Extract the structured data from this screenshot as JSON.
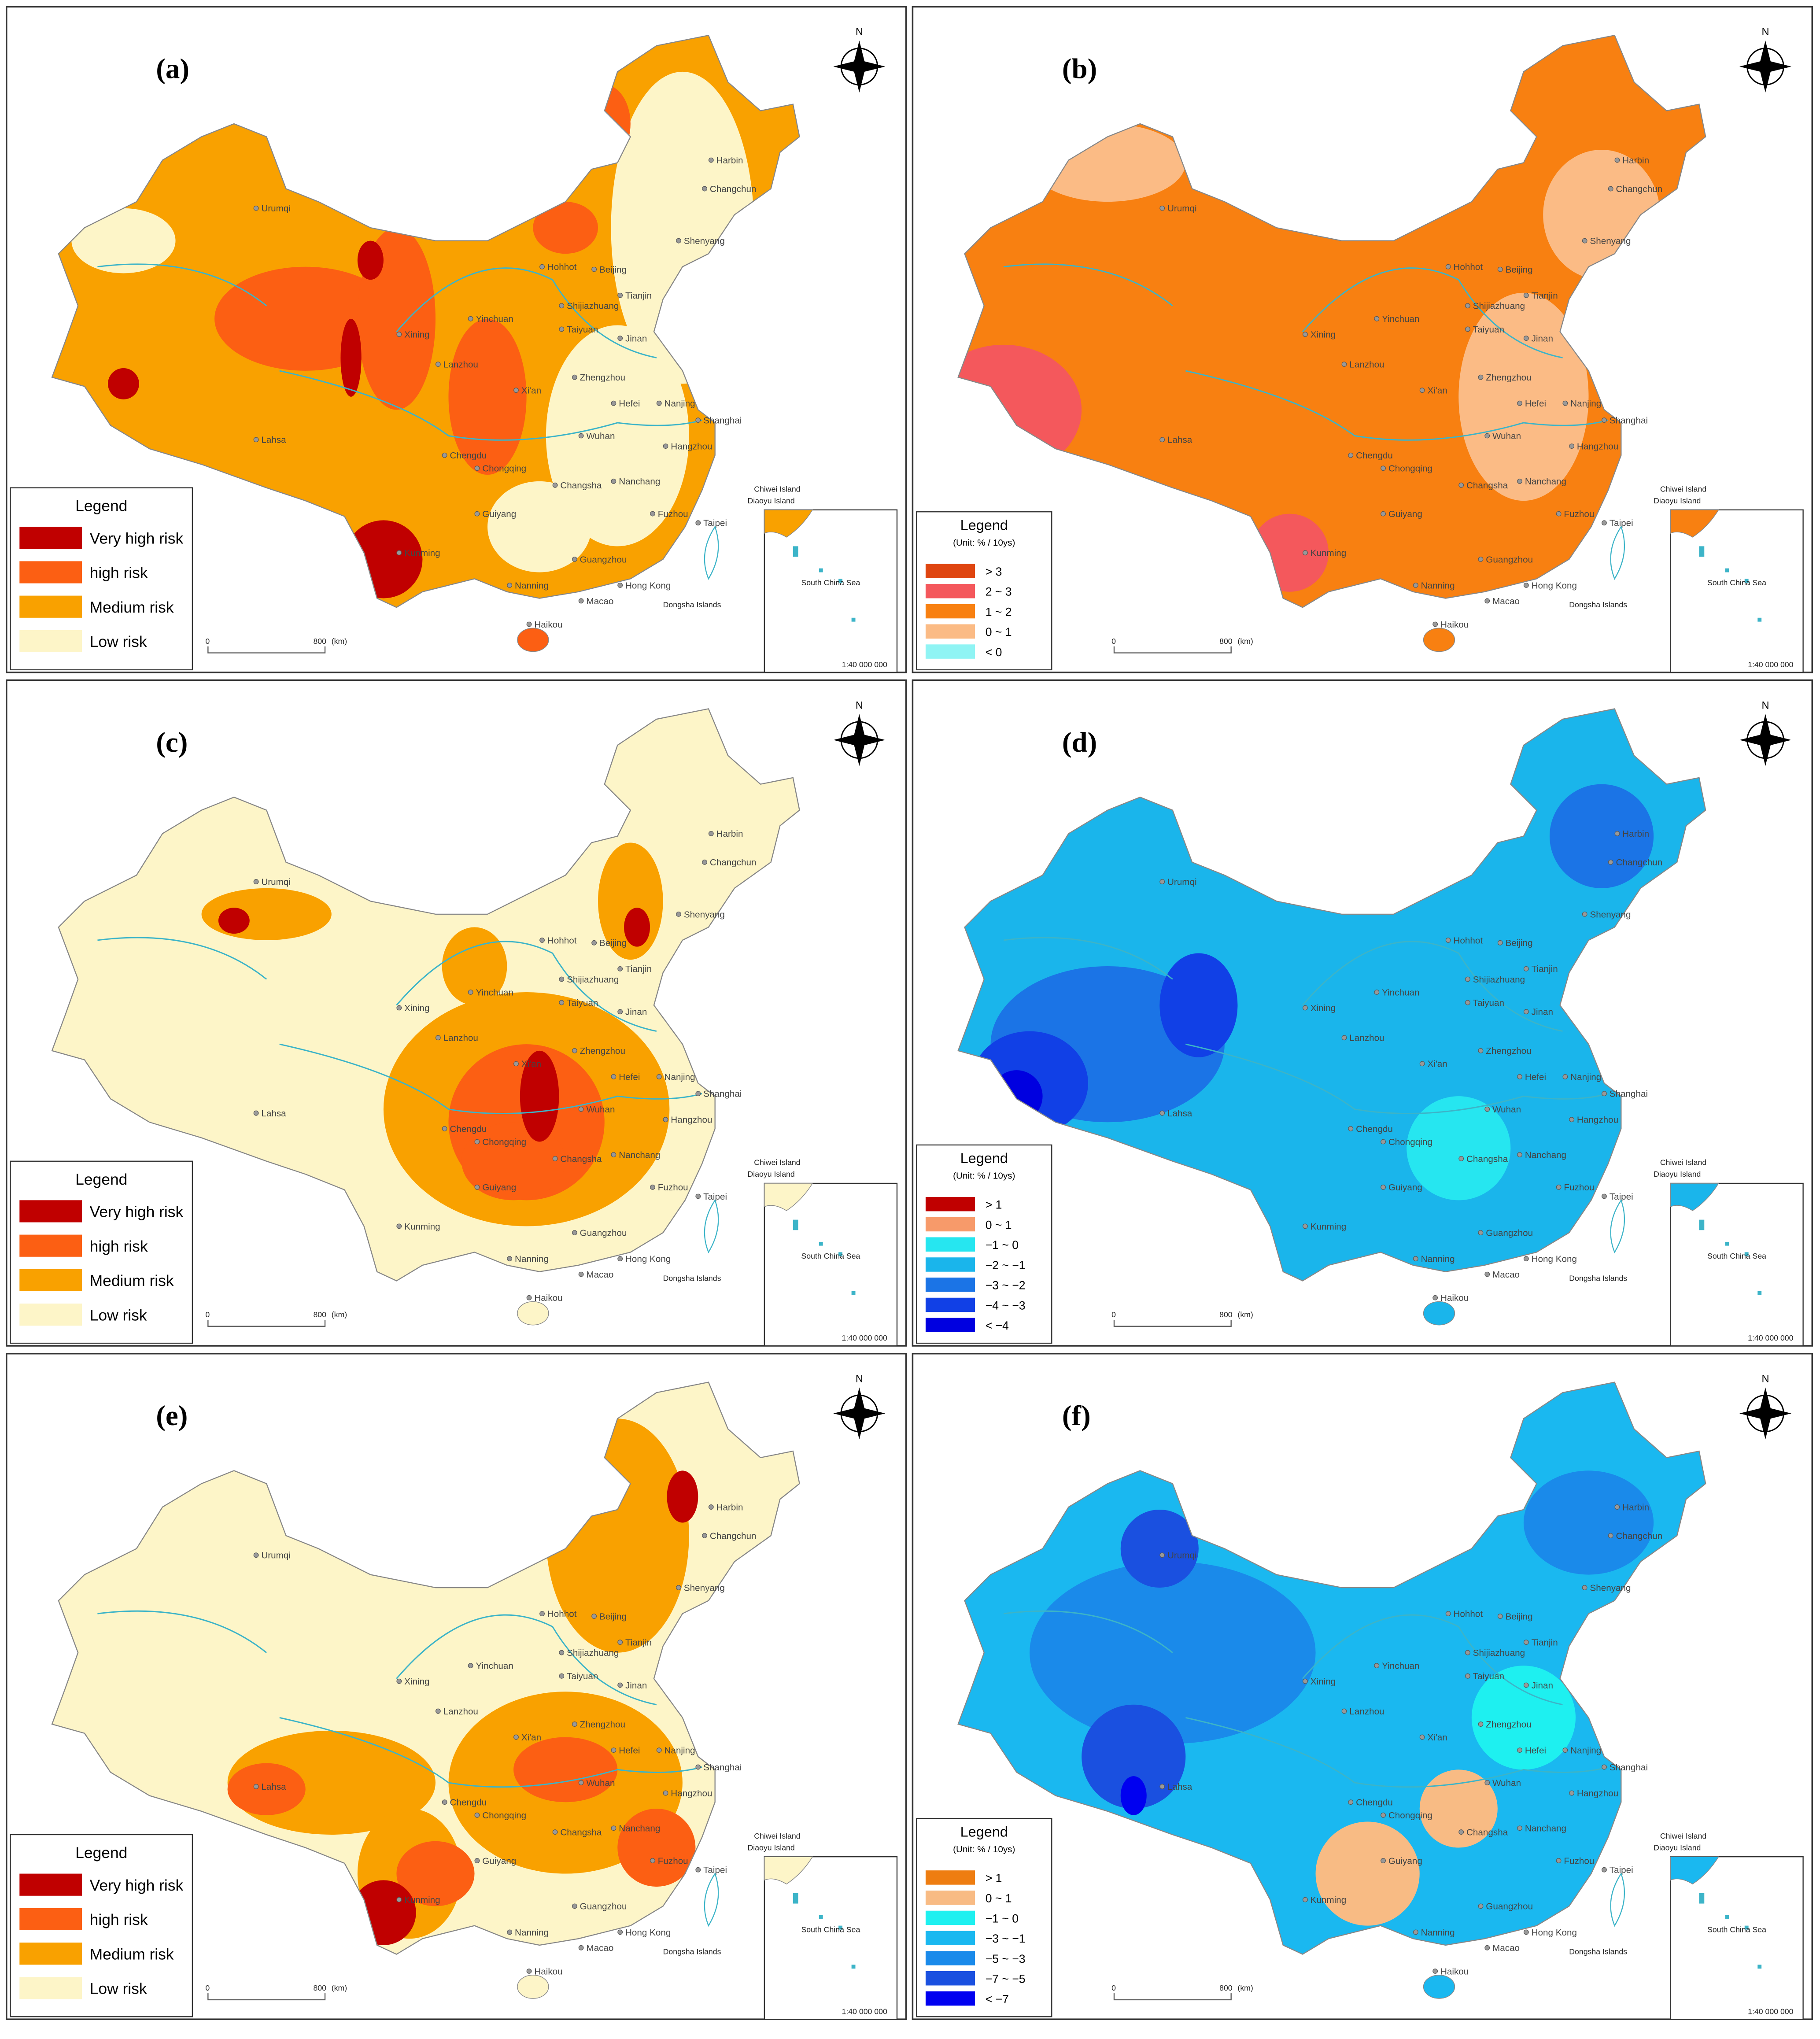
{
  "north": "N",
  "scale": {
    "zero": "0",
    "distance": "800",
    "unit": "(km)"
  },
  "inset": {
    "sea": "South China Sea",
    "ratio": "1:40 000 000"
  },
  "islands": [
    "Chiwei Island",
    "Diaoyu Island",
    "Dongsha Islands"
  ],
  "cities": [
    "Harbin",
    "Changchun",
    "Urumqi",
    "Shenyang",
    "Hohhot",
    "Beijing",
    "Tianjin",
    "Shijiazhuang",
    "Xining",
    "Yinchuan",
    "Taiyuan",
    "Jinan",
    "Lanzhou",
    "Xi'an",
    "Zhengzhou",
    "Hefei",
    "Nanjing",
    "Shanghai",
    "Lahsa",
    "Wuhan",
    "Chengdu",
    "Chongqing",
    "Hangzhou",
    "Changsha",
    "Nanchang",
    "Guiyang",
    "Fuzhou",
    "Kunming",
    "Nanning",
    "Guangzhou",
    "Hong Kong",
    "Macao",
    "Haikou",
    "Taipei"
  ],
  "panels": [
    {
      "label": "(a)",
      "legend": {
        "title": "Legend",
        "items": [
          {
            "label": "Very high risk",
            "color": "#c00000"
          },
          {
            "label": "high risk",
            "color": "#fc5f13"
          },
          {
            "label": "Medium risk",
            "color": "#f9a100"
          },
          {
            "label": "Low risk",
            "color": "#fdf5c8"
          }
        ]
      }
    },
    {
      "label": "(b)",
      "legend": {
        "title": "Legend",
        "unit": "(Unit: % / 10ys)",
        "items": [
          {
            "label": "> 3",
            "color": "#df4510"
          },
          {
            "label": "2 ~ 3",
            "color": "#f4585c"
          },
          {
            "label": "1 ~ 2",
            "color": "#f88011"
          },
          {
            "label": "0 ~ 1",
            "color": "#fbbb85"
          },
          {
            "label": "< 0",
            "color": "#8ff4f4"
          }
        ]
      }
    },
    {
      "label": "(c)",
      "legend": {
        "title": "Legend",
        "items": [
          {
            "label": "Very high risk",
            "color": "#c00000"
          },
          {
            "label": "high risk",
            "color": "#fc5f13"
          },
          {
            "label": "Medium risk",
            "color": "#f9a100"
          },
          {
            "label": "Low risk",
            "color": "#fdf5c8"
          }
        ]
      }
    },
    {
      "label": "(d)",
      "legend": {
        "title": "Legend",
        "unit": "(Unit: % / 10ys)",
        "items": [
          {
            "label": "> 1",
            "color": "#c00000"
          },
          {
            "label": "0 ~ 1",
            "color": "#f79a6a"
          },
          {
            "label": "−1 ~ 0",
            "color": "#26e6f0"
          },
          {
            "label": "−2 ~ −1",
            "color": "#1ab5eb"
          },
          {
            "label": "−3 ~ −2",
            "color": "#1b74e6"
          },
          {
            "label": "−4 ~ −3",
            "color": "#1140e6"
          },
          {
            "label": "< −4",
            "color": "#0000e0"
          }
        ]
      }
    },
    {
      "label": "(e)",
      "legend": {
        "title": "Legend",
        "items": [
          {
            "label": "Very high risk",
            "color": "#c00000"
          },
          {
            "label": "high risk",
            "color": "#fc5f13"
          },
          {
            "label": "Medium risk",
            "color": "#f9a100"
          },
          {
            "label": "Low risk",
            "color": "#fdf5c8"
          }
        ]
      }
    },
    {
      "label": "(f)",
      "legend": {
        "title": "Legend",
        "unit": "(Unit: % / 10ys)",
        "items": [
          {
            "label": "> 1",
            "color": "#ee7d11"
          },
          {
            "label": "0 ~ 1",
            "color": "#f8bb84"
          },
          {
            "label": "−1 ~ 0",
            "color": "#1ef0f0"
          },
          {
            "label": "−3 ~ −1",
            "color": "#1ab8f0"
          },
          {
            "label": "−5 ~ −3",
            "color": "#1a8aea"
          },
          {
            "label": "−7 ~ −5",
            "color": "#1a50e0"
          },
          {
            "label": "< −7",
            "color": "#0000f0"
          }
        ]
      }
    }
  ]
}
